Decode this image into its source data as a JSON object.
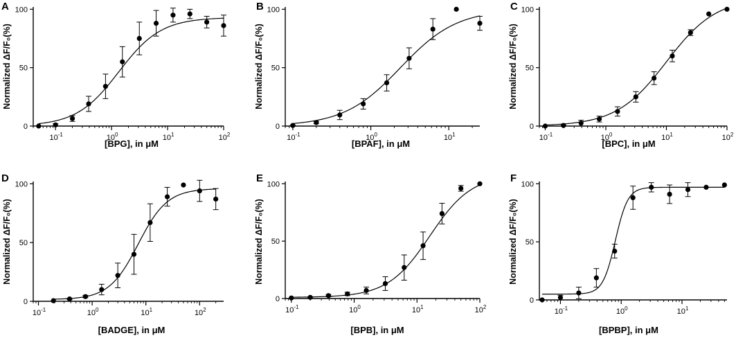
{
  "y_axis_label": "Normalized ΔF/F₀(%)",
  "chart_data": [
    {
      "type": "scatter",
      "panel": "A",
      "title": "",
      "xlabel": "[BPG], in μM",
      "ylabel": "Normalized ΔF/F₀(%)",
      "x_scale": "log",
      "xlim": [
        0.04,
        100
      ],
      "ylim": [
        0,
        102
      ],
      "xticks": [
        0.1,
        1,
        10,
        100
      ],
      "xtick_labels": [
        "10-1",
        "100",
        "101",
        "102"
      ],
      "yticks": [
        0,
        50,
        100
      ],
      "ytick_labels": [
        "0",
        "50",
        "100"
      ],
      "x": [
        0.05,
        0.1,
        0.2,
        0.39,
        0.78,
        1.56,
        3.13,
        6.25,
        12.5,
        25,
        50,
        100
      ],
      "y": [
        0,
        1,
        6.5,
        19,
        34,
        55,
        75,
        88,
        95,
        96,
        89,
        86
      ],
      "err": [
        0,
        1,
        2.5,
        6.5,
        10.5,
        13,
        14,
        11,
        6,
        4,
        5,
        9
      ],
      "fit": {
        "bottom": 0,
        "top": 93,
        "ec50": 1.35,
        "hill": 1.15
      }
    },
    {
      "type": "scatter",
      "panel": "B",
      "title": "",
      "xlabel": "[BPAF], in μM",
      "ylabel": "Normalized ΔF/F₀(%)",
      "x_scale": "log",
      "xlim": [
        0.08,
        25
      ],
      "ylim": [
        0,
        102
      ],
      "xticks": [
        0.1,
        1,
        10
      ],
      "xtick_labels": [
        "10-1",
        "100",
        "101"
      ],
      "yticks": [
        0,
        50,
        100
      ],
      "ytick_labels": [
        "0",
        "50",
        "100"
      ],
      "x": [
        0.1,
        0.2,
        0.4,
        0.8,
        1.6,
        3.1,
        6.25,
        12.5,
        25
      ],
      "y": [
        0.5,
        3,
        9.5,
        19,
        37,
        58,
        83,
        100,
        88
      ],
      "err": [
        0.5,
        1,
        4,
        4.5,
        7,
        9,
        9,
        0,
        6
      ],
      "fit": {
        "bottom": 0,
        "top": 100,
        "ec50": 2.4,
        "hill": 1.2
      }
    },
    {
      "type": "scatter",
      "panel": "C",
      "title": "",
      "xlabel": "[BPC], in μM",
      "ylabel": "Normalized ΔF/F₀(%)",
      "x_scale": "log",
      "xlim": [
        0.08,
        100
      ],
      "ylim": [
        0,
        102
      ],
      "xticks": [
        0.1,
        1,
        10,
        100
      ],
      "xtick_labels": [
        "10-1",
        "100",
        "101",
        "102"
      ],
      "yticks": [
        0,
        50,
        100
      ],
      "ytick_labels": [
        "0",
        "50",
        "100"
      ],
      "x": [
        0.1,
        0.2,
        0.39,
        0.78,
        1.56,
        3.13,
        6.25,
        12.5,
        25,
        50,
        100
      ],
      "y": [
        0,
        0.5,
        2.5,
        6,
        12.5,
        25,
        41,
        60,
        80,
        96,
        100
      ],
      "err": [
        0,
        0.5,
        2.5,
        2.5,
        4,
        4.5,
        5.5,
        5,
        2.5,
        0,
        0
      ],
      "fit": {
        "bottom": 0,
        "top": 110,
        "ec50": 10,
        "hill": 1.05
      }
    },
    {
      "type": "scatter",
      "panel": "D",
      "title": "",
      "xlabel": "[BADGE], in μM",
      "ylabel": "Normalized ΔF/F₀(%)",
      "x_scale": "log",
      "xlim": [
        0.08,
        280
      ],
      "ylim": [
        0,
        102
      ],
      "xticks": [
        0.1,
        1,
        10,
        100
      ],
      "xtick_labels": [
        "10-1",
        "100",
        "101",
        "102"
      ],
      "yticks": [
        0,
        50,
        100
      ],
      "ytick_labels": [
        "0",
        "50",
        "100"
      ],
      "x": [
        0.19,
        0.38,
        0.75,
        1.5,
        3,
        6,
        12,
        25,
        50,
        100,
        200
      ],
      "y": [
        0.5,
        2,
        4,
        10,
        22,
        40,
        67,
        89,
        99,
        94,
        87
      ],
      "err": [
        0,
        0.5,
        1,
        4.5,
        10.5,
        17,
        16,
        8,
        0,
        9,
        9
      ],
      "fit": {
        "bottom": 1.5,
        "top": 96,
        "ec50": 7.2,
        "hill": 1.6
      }
    },
    {
      "type": "scatter",
      "panel": "E",
      "title": "",
      "xlabel": "[BPB], in μM",
      "ylabel": "Normalized ΔF/F₀(%)",
      "x_scale": "log",
      "xlim": [
        0.08,
        100
      ],
      "ylim": [
        0,
        102
      ],
      "xticks": [
        0.1,
        1,
        10,
        100
      ],
      "xtick_labels": [
        "10-1",
        "100",
        "101",
        "102"
      ],
      "yticks": [
        0,
        50,
        100
      ],
      "ytick_labels": [
        "0",
        "50",
        "100"
      ],
      "x": [
        0.1,
        0.2,
        0.39,
        0.78,
        1.56,
        3.13,
        6.25,
        12.5,
        25,
        50,
        100
      ],
      "y": [
        0.5,
        1,
        2.5,
        4,
        7,
        13,
        27,
        46,
        74,
        96,
        100
      ],
      "err": [
        0,
        0.5,
        1,
        1.5,
        3,
        6,
        11,
        12,
        9,
        2.5,
        0
      ],
      "fit": {
        "bottom": 1,
        "top": 108,
        "ec50": 16,
        "hill": 1.3
      }
    },
    {
      "type": "scatter",
      "panel": "F",
      "title": "",
      "xlabel": "[BPBP], in μM",
      "ylabel": "Normalized ΔF/F₀(%)",
      "x_scale": "log",
      "xlim": [
        0.045,
        55
      ],
      "ylim": [
        0,
        102
      ],
      "xticks": [
        0.1,
        1,
        10
      ],
      "xtick_labels": [
        "10-1",
        "100",
        "101"
      ],
      "yticks": [
        0,
        50,
        100
      ],
      "ytick_labels": [
        "0",
        "50",
        "100"
      ],
      "x": [
        0.05,
        0.1,
        0.2,
        0.39,
        0.78,
        1.56,
        3.13,
        6.25,
        12.5,
        25,
        50
      ],
      "y": [
        0,
        2,
        6,
        19,
        42,
        88,
        97,
        91,
        95,
        97,
        99
      ],
      "err": [
        0,
        2,
        5,
        8,
        6,
        10,
        4,
        8,
        6,
        0,
        0
      ],
      "fit": {
        "bottom": 5,
        "top": 97,
        "ec50": 0.8,
        "hill": 4.2
      }
    }
  ]
}
